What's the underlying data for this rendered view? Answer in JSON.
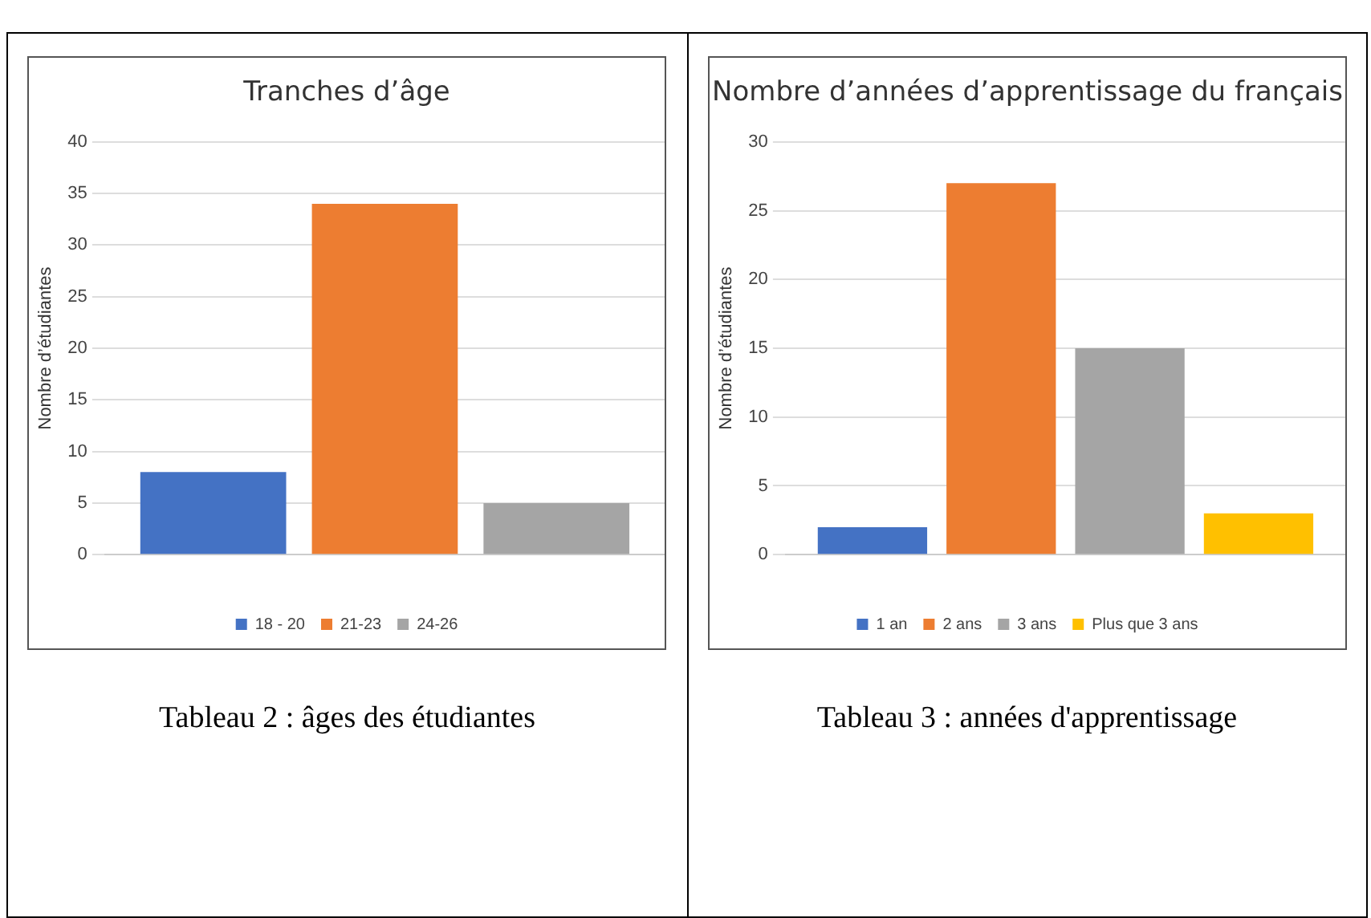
{
  "chart_data": [
    {
      "type": "bar",
      "title": "Tranches d’âge",
      "ylabel": "Nombre d’étudiantes",
      "categories": [
        null
      ],
      "series": [
        {
          "name": "18 - 20",
          "color": "#4472c4",
          "values": [
            8
          ]
        },
        {
          "name": "21-23",
          "color": "#ed7d31",
          "values": [
            34
          ]
        },
        {
          "name": "24-26",
          "color": "#a5a5a5",
          "values": [
            5
          ]
        }
      ],
      "ylim": [
        0,
        40
      ],
      "yticks": [
        0,
        5,
        10,
        15,
        20,
        25,
        30,
        35,
        40
      ],
      "grid": "y",
      "legend": "bottom",
      "annotations": [
        "Tableau 2 :  âges des étudiantes"
      ]
    },
    {
      "type": "bar",
      "title": "Nombre d’années d’apprentissage du français",
      "ylabel": "Nombre d’étudiantes",
      "categories": [
        null
      ],
      "series": [
        {
          "name": "1 an",
          "color": "#4472c4",
          "values": [
            2
          ]
        },
        {
          "name": "2 ans",
          "color": "#ed7d31",
          "values": [
            27
          ]
        },
        {
          "name": "3 ans",
          "color": "#a5a5a5",
          "values": [
            15
          ]
        },
        {
          "name": "Plus que 3 ans",
          "color": "#ffc000",
          "values": [
            3
          ]
        }
      ],
      "ylim": [
        0,
        30
      ],
      "yticks": [
        0,
        5,
        10,
        15,
        20,
        25,
        30
      ],
      "grid": "y",
      "legend": "bottom",
      "annotations": [
        "Tableau 3 : années d'apprentissage"
      ]
    }
  ]
}
